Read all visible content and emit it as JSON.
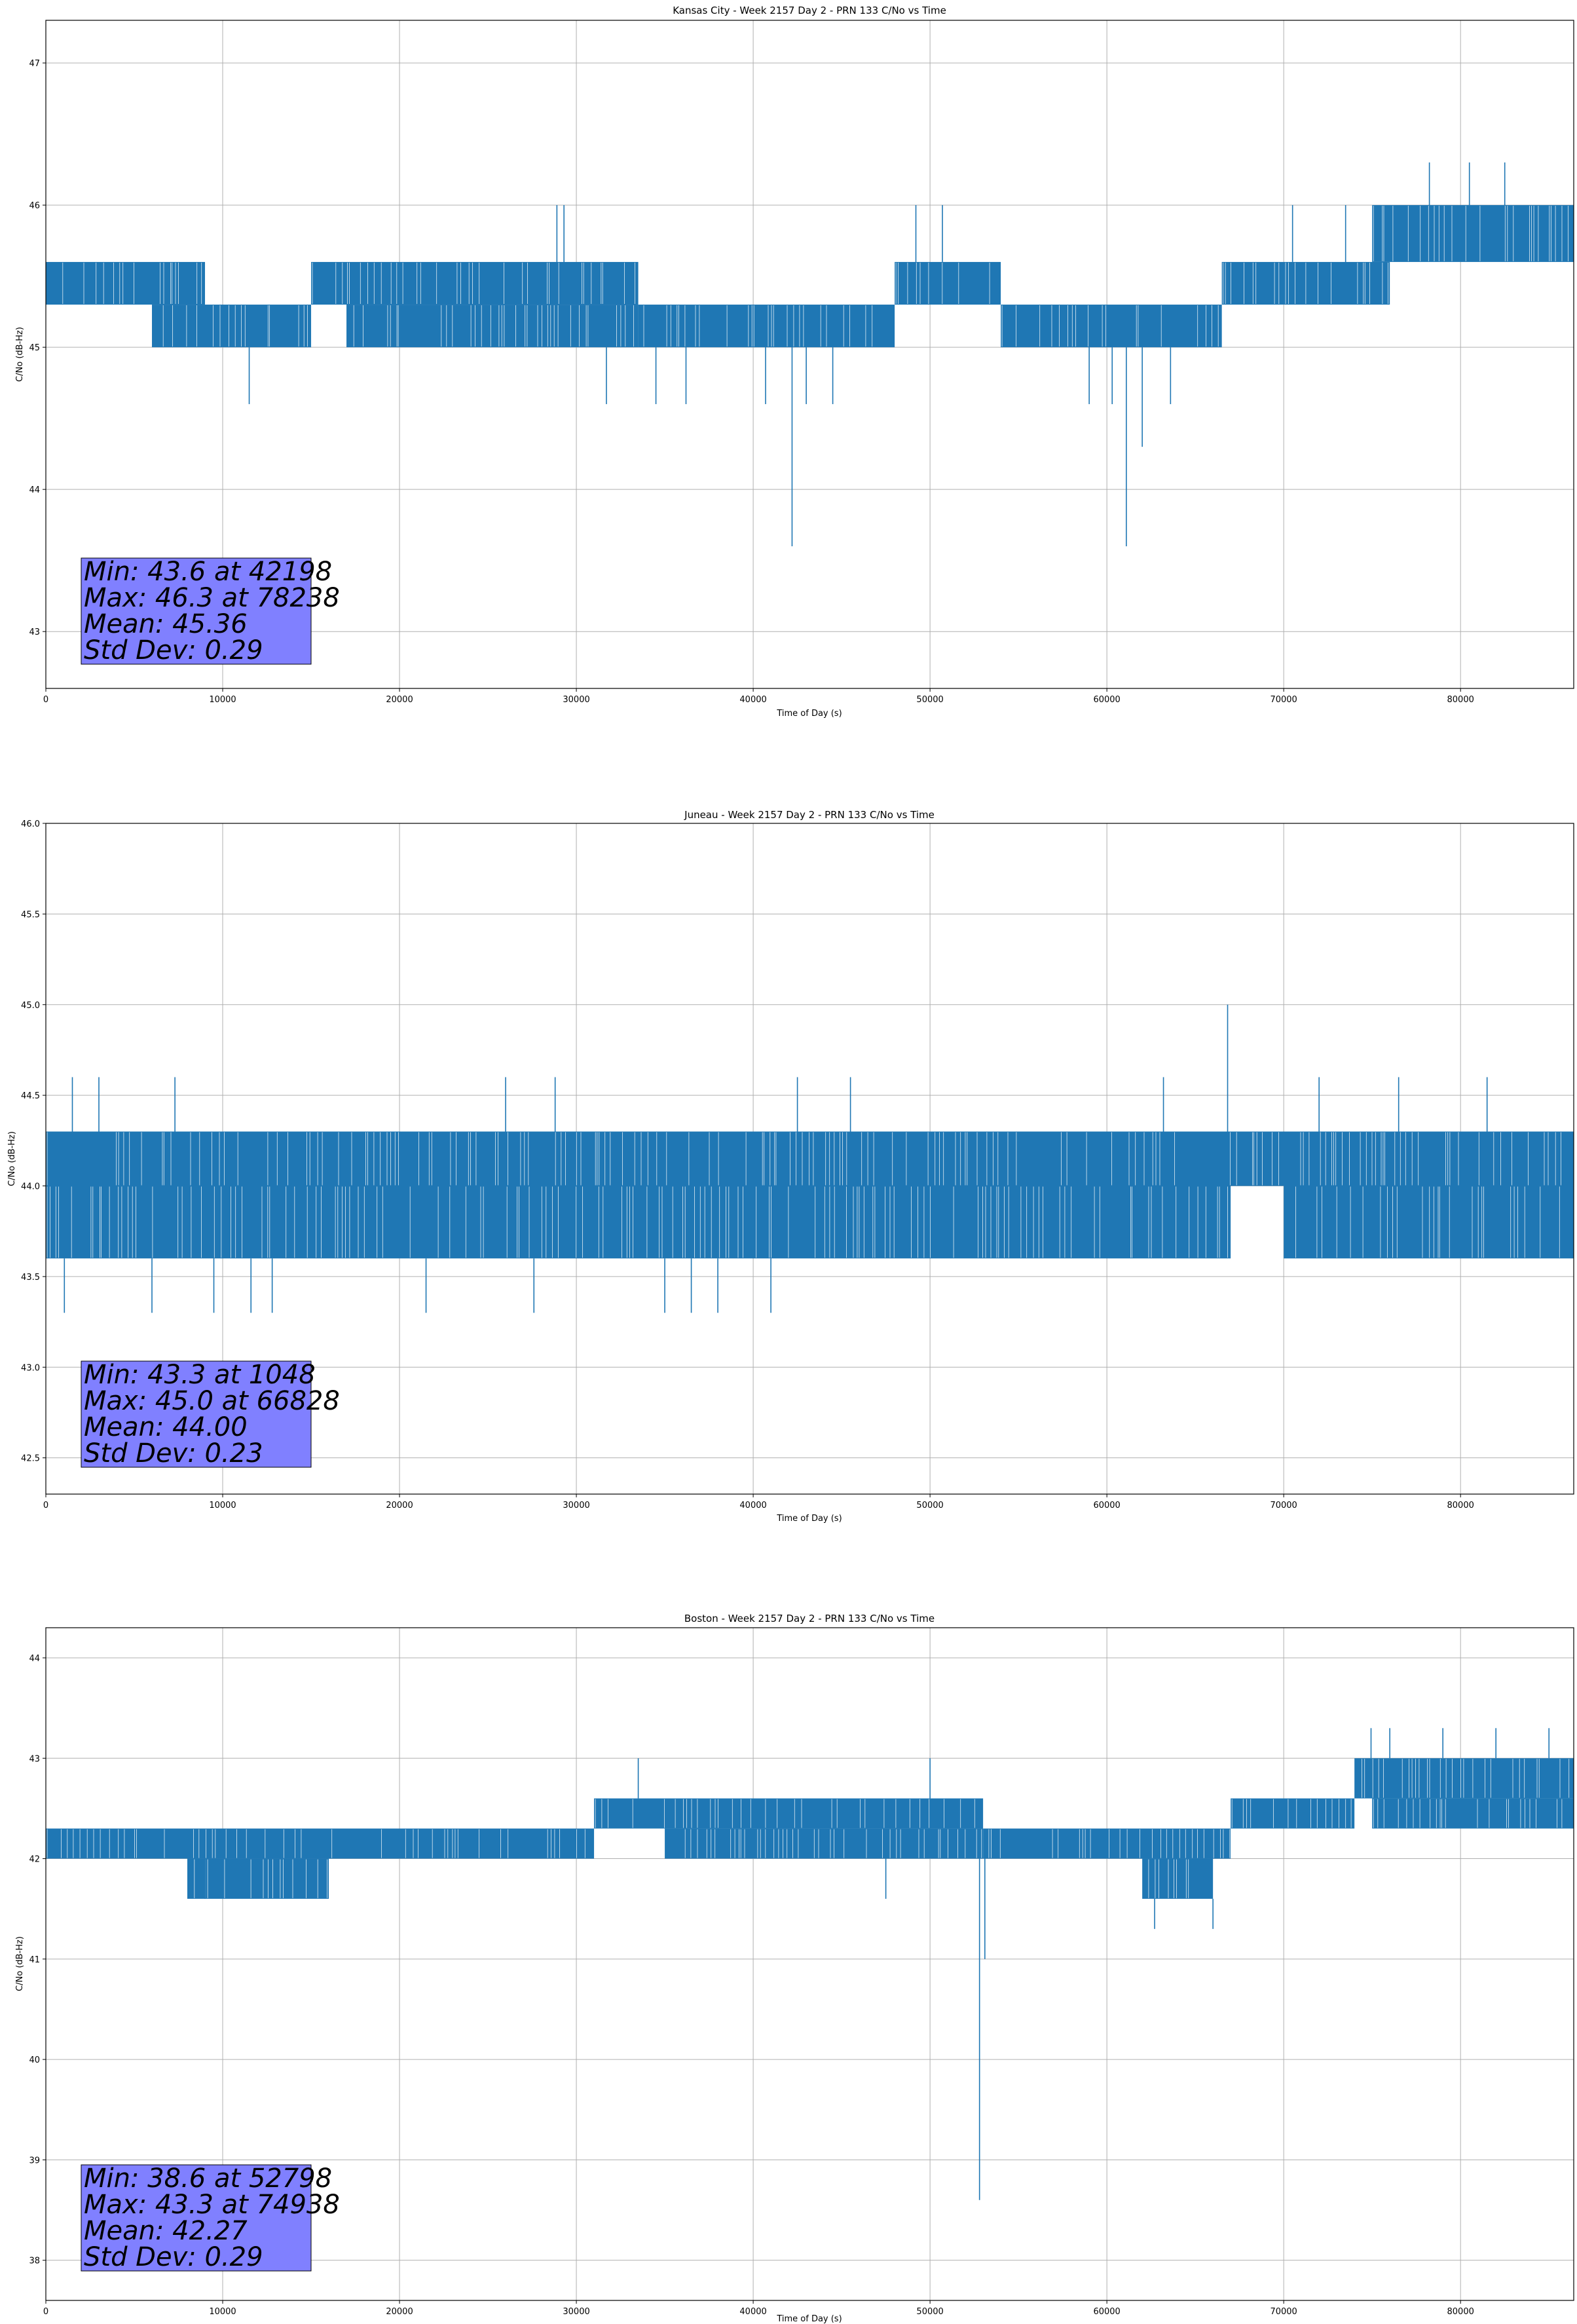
{
  "style": {
    "line_color": "#1f77b4",
    "stats_box_color": "#8080ff",
    "grid_color": "#b0b0b0"
  },
  "chart_data": [
    {
      "type": "line",
      "title": "Kansas City - Week 2157 Day 2 - PRN 133 C/No vs Time",
      "xlabel": "Time of Day (s)",
      "ylabel": "C/No (dB-Hz)",
      "xlim": [
        0,
        86400
      ],
      "ylim": [
        42.6,
        47.3
      ],
      "xticks": [
        0,
        10000,
        20000,
        30000,
        40000,
        50000,
        60000,
        70000,
        80000
      ],
      "xtick_labels": [
        "0",
        "10000",
        "20000",
        "30000",
        "40000",
        "50000",
        "60000",
        "70000",
        "80000"
      ],
      "yticks": [
        43,
        44,
        45,
        46,
        47
      ],
      "ytick_labels": [
        "43",
        "44",
        "45",
        "46",
        "47"
      ],
      "grid": true,
      "series": [
        {
          "bands": [
            {
              "x": [
                0,
                9000
              ],
              "y": [
                45.3,
                45.6
              ]
            },
            {
              "x": [
                6000,
                15000
              ],
              "y": [
                45.0,
                45.3
              ]
            },
            {
              "x": [
                15000,
                33500
              ],
              "y": [
                45.3,
                45.6
              ]
            },
            {
              "x": [
                17000,
                33500
              ],
              "y": [
                45.0,
                45.3
              ]
            },
            {
              "x": [
                33500,
                48000
              ],
              "y": [
                45.0,
                45.3
              ]
            },
            {
              "x": [
                48000,
                54000
              ],
              "y": [
                45.3,
                45.6
              ]
            },
            {
              "x": [
                54000,
                66500
              ],
              "y": [
                45.0,
                45.3
              ]
            },
            {
              "x": [
                66500,
                76000
              ],
              "y": [
                45.3,
                45.6
              ]
            },
            {
              "x": [
                75000,
                86400
              ],
              "y": [
                45.6,
                46.0
              ]
            }
          ],
          "spikes": [
            {
              "x": 11500,
              "y": 44.6
            },
            {
              "x": 28900,
              "y": 46.0
            },
            {
              "x": 29300,
              "y": 46.0
            },
            {
              "x": 31700,
              "y": 44.6
            },
            {
              "x": 34500,
              "y": 44.6
            },
            {
              "x": 36200,
              "y": 44.6
            },
            {
              "x": 40700,
              "y": 44.6
            },
            {
              "x": 42198,
              "y": 43.6
            },
            {
              "x": 43000,
              "y": 44.6
            },
            {
              "x": 44500,
              "y": 44.6
            },
            {
              "x": 49200,
              "y": 46.0
            },
            {
              "x": 50700,
              "y": 46.0
            },
            {
              "x": 59000,
              "y": 44.6
            },
            {
              "x": 60300,
              "y": 44.6
            },
            {
              "x": 61100,
              "y": 43.6
            },
            {
              "x": 62000,
              "y": 44.3
            },
            {
              "x": 63600,
              "y": 44.6
            },
            {
              "x": 70500,
              "y": 46.0
            },
            {
              "x": 73500,
              "y": 46.0
            },
            {
              "x": 78238,
              "y": 46.3
            },
            {
              "x": 80500,
              "y": 46.3
            },
            {
              "x": 82500,
              "y": 46.3
            }
          ]
        }
      ],
      "stats": [
        "Min: 43.6 at 42198",
        "Max: 46.3 at 78238",
        "Mean: 45.36",
        "Std Dev: 0.29"
      ]
    },
    {
      "type": "line",
      "title": "Juneau - Week 2157 Day 2 - PRN 133 C/No vs Time",
      "xlabel": "Time of Day (s)",
      "ylabel": "C/No (dB-Hz)",
      "xlim": [
        0,
        86400
      ],
      "ylim": [
        42.3,
        46.0
      ],
      "xticks": [
        0,
        10000,
        20000,
        30000,
        40000,
        50000,
        60000,
        70000,
        80000
      ],
      "xtick_labels": [
        "0",
        "10000",
        "20000",
        "30000",
        "40000",
        "50000",
        "60000",
        "70000",
        "80000"
      ],
      "yticks": [
        42.5,
        43.0,
        43.5,
        44.0,
        44.5,
        45.0,
        45.5,
        46.0
      ],
      "ytick_labels": [
        "42.5",
        "43.0",
        "43.5",
        "44.0",
        "44.5",
        "45.0",
        "45.5",
        "46.0"
      ],
      "grid": true,
      "series": [
        {
          "bands": [
            {
              "x": [
                0,
                86400
              ],
              "y": [
                44.0,
                44.3
              ]
            },
            {
              "x": [
                0,
                67000
              ],
              "y": [
                43.6,
                44.0
              ]
            },
            {
              "x": [
                70000,
                86400
              ],
              "y": [
                43.6,
                44.0
              ]
            }
          ],
          "spikes": [
            {
              "x": 1048,
              "y": 43.3
            },
            {
              "x": 1500,
              "y": 44.6
            },
            {
              "x": 3000,
              "y": 44.6
            },
            {
              "x": 6000,
              "y": 43.3
            },
            {
              "x": 7300,
              "y": 44.6
            },
            {
              "x": 9500,
              "y": 43.3
            },
            {
              "x": 11600,
              "y": 43.3
            },
            {
              "x": 12800,
              "y": 43.3
            },
            {
              "x": 21500,
              "y": 43.3
            },
            {
              "x": 26000,
              "y": 44.6
            },
            {
              "x": 27600,
              "y": 43.3
            },
            {
              "x": 28800,
              "y": 44.6
            },
            {
              "x": 35000,
              "y": 43.3
            },
            {
              "x": 36500,
              "y": 43.3
            },
            {
              "x": 38000,
              "y": 43.3
            },
            {
              "x": 41000,
              "y": 43.3
            },
            {
              "x": 42500,
              "y": 44.6
            },
            {
              "x": 45500,
              "y": 44.6
            },
            {
              "x": 63200,
              "y": 44.6
            },
            {
              "x": 66828,
              "y": 45.0
            },
            {
              "x": 72000,
              "y": 44.6
            },
            {
              "x": 76500,
              "y": 44.6
            },
            {
              "x": 81500,
              "y": 44.6
            }
          ]
        }
      ],
      "stats": [
        "Min: 43.3 at 1048",
        "Max: 45.0 at 66828",
        "Mean: 44.00",
        "Std Dev: 0.23"
      ]
    },
    {
      "type": "line",
      "title": "Boston - Week 2157 Day 2 - PRN 133 C/No vs Time",
      "xlabel": "Time of Day (s)",
      "ylabel": "C/No (dB-Hz)",
      "xlim": [
        0,
        86400
      ],
      "ylim": [
        37.6,
        44.3
      ],
      "xticks": [
        0,
        10000,
        20000,
        30000,
        40000,
        50000,
        60000,
        70000,
        80000
      ],
      "xtick_labels": [
        "0",
        "10000",
        "20000",
        "30000",
        "40000",
        "50000",
        "60000",
        "70000",
        "80000"
      ],
      "yticks": [
        38,
        39,
        40,
        41,
        42,
        43,
        44
      ],
      "ytick_labels": [
        "38",
        "39",
        "40",
        "41",
        "42",
        "43",
        "44"
      ],
      "grid": true,
      "series": [
        {
          "bands": [
            {
              "x": [
                0,
                31000
              ],
              "y": [
                42.0,
                42.3
              ]
            },
            {
              "x": [
                8000,
                16000
              ],
              "y": [
                41.6,
                42.0
              ]
            },
            {
              "x": [
                31000,
                53000
              ],
              "y": [
                42.3,
                42.6
              ]
            },
            {
              "x": [
                35000,
                53000
              ],
              "y": [
                42.0,
                42.3
              ]
            },
            {
              "x": [
                53000,
                67000
              ],
              "y": [
                42.0,
                42.3
              ]
            },
            {
              "x": [
                62000,
                66000
              ],
              "y": [
                41.6,
                42.0
              ]
            },
            {
              "x": [
                67000,
                74000
              ],
              "y": [
                42.3,
                42.6
              ]
            },
            {
              "x": [
                74000,
                86400
              ],
              "y": [
                42.6,
                43.0
              ]
            },
            {
              "x": [
                75000,
                86400
              ],
              "y": [
                42.3,
                42.6
              ]
            }
          ],
          "spikes": [
            {
              "x": 9000,
              "y": 41.6
            },
            {
              "x": 33500,
              "y": 43.0
            },
            {
              "x": 47500,
              "y": 41.6
            },
            {
              "x": 50000,
              "y": 43.0
            },
            {
              "x": 52798,
              "y": 38.6
            },
            {
              "x": 53100,
              "y": 41.0
            },
            {
              "x": 62700,
              "y": 41.3
            },
            {
              "x": 66000,
              "y": 41.3
            },
            {
              "x": 74938,
              "y": 43.3
            },
            {
              "x": 76000,
              "y": 43.3
            },
            {
              "x": 79000,
              "y": 43.3
            },
            {
              "x": 82000,
              "y": 43.3
            },
            {
              "x": 85000,
              "y": 43.3
            }
          ]
        }
      ],
      "stats": [
        "Min: 38.6 at 52798",
        "Max: 43.3 at 74938",
        "Mean: 42.27",
        "Std Dev: 0.29"
      ]
    }
  ]
}
